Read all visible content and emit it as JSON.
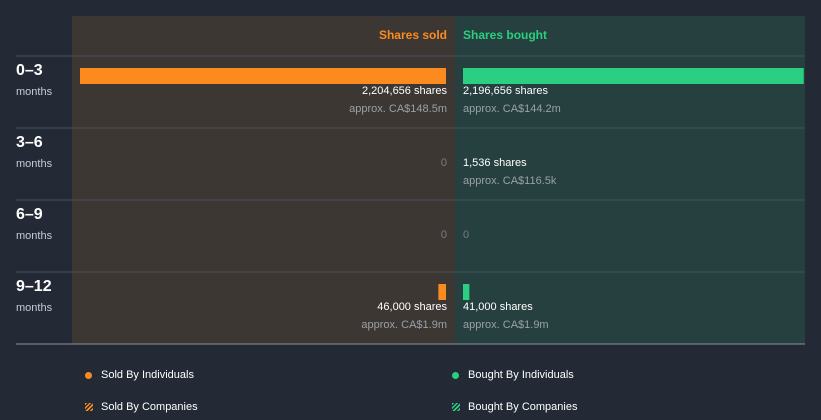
{
  "chart_data": {
    "type": "bar",
    "orientation": "horizontal-diverging",
    "column_headers": {
      "sold": "Shares sold",
      "bought": "Shares bought"
    },
    "categories": [
      {
        "range": "0–3",
        "unit": "months"
      },
      {
        "range": "3–6",
        "unit": "months"
      },
      {
        "range": "6–9",
        "unit": "months"
      },
      {
        "range": "9–12",
        "unit": "months"
      }
    ],
    "series": [
      {
        "name": "Shares sold",
        "values": [
          2204656,
          0,
          0,
          46000
        ],
        "labels": [
          "2,204,656 shares",
          "0",
          "0",
          "46,000 shares"
        ],
        "approx": [
          "approx. CA$148.5m",
          "",
          "",
          "approx. CA$1.9m"
        ]
      },
      {
        "name": "Shares bought",
        "values": [
          2196656,
          1536,
          0,
          41000
        ],
        "labels": [
          "2,196,656 shares",
          "1,536 shares",
          "0",
          "41,000 shares"
        ],
        "approx": [
          "approx. CA$144.2m",
          "approx. CA$116.5k",
          "",
          "approx. CA$1.9m"
        ]
      }
    ],
    "colors": {
      "sold": "#fb8b1e",
      "bought": "#2bcf81",
      "sold_panel": "#3d3734",
      "bought_panel": "#25403f",
      "row_label_panel": "#2b313c",
      "background": "#232a35"
    },
    "legend": [
      {
        "label": "Sold By Individuals",
        "icon": "orange-dot-icon"
      },
      {
        "label": "Bought By Individuals",
        "icon": "green-dot-icon"
      },
      {
        "label": "Sold By Companies",
        "icon": "orange-hatch-icon"
      },
      {
        "label": "Bought By Companies",
        "icon": "green-hatch-icon"
      }
    ]
  }
}
